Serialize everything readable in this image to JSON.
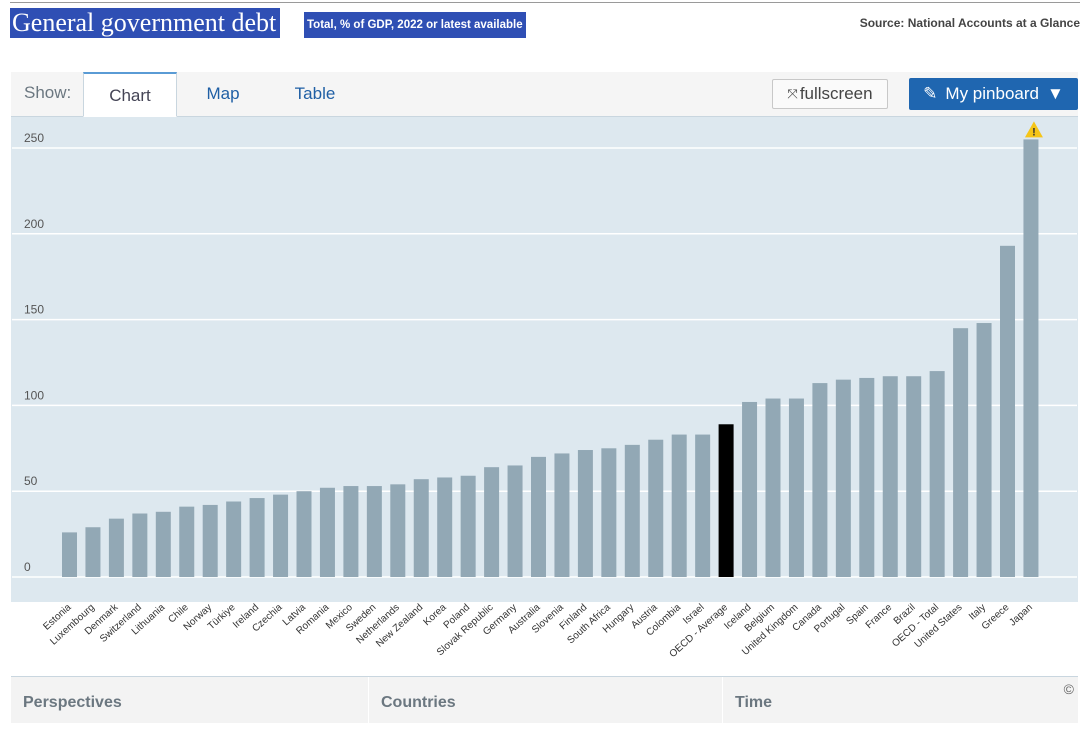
{
  "header": {
    "title": "General government debt",
    "subtitle": "Total, % of GDP, 2022 or latest available",
    "source": "Source: National Accounts at a Glance"
  },
  "toolbar": {
    "show_label": "Show:",
    "tabs": [
      {
        "label": "Chart",
        "active": true
      },
      {
        "label": "Map",
        "active": false
      },
      {
        "label": "Table",
        "active": false
      }
    ],
    "fullscreen_label": "fullscreen",
    "fullscreen_icon": "expand-arrows-icon",
    "pinboard_label": "My pinboard",
    "pinboard_icon": "pin-icon"
  },
  "footer": {
    "items": [
      "Perspectives",
      "Countries",
      "Time"
    ],
    "copyright": "©"
  },
  "colors": {
    "bar": "#92a8b5",
    "highlight_bar": "#000000",
    "plot_background": "#dde8ef",
    "warning": "#f5c518"
  },
  "chart_data": {
    "type": "bar",
    "ylim": [
      0,
      260
    ],
    "yticks": [
      0,
      50,
      100,
      150,
      200,
      250
    ],
    "grid": true,
    "highlight": "OECD - Average",
    "warning_on": "Japan",
    "categories": [
      "Estonia",
      "Luxembourg",
      "Denmark",
      "Switzerland",
      "Lithuania",
      "Chile",
      "Norway",
      "Türkiye",
      "Ireland",
      "Czechia",
      "Latvia",
      "Romania",
      "Mexico",
      "Sweden",
      "Netherlands",
      "New Zealand",
      "Korea",
      "Poland",
      "Slovak Republic",
      "Germany",
      "Australia",
      "Slovenia",
      "Finland",
      "South Africa",
      "Hungary",
      "Austria",
      "Colombia",
      "Israel",
      "OECD - Average",
      "Iceland",
      "Belgium",
      "United Kingdom",
      "Canada",
      "Portugal",
      "Spain",
      "France",
      "Brazil",
      "OECD - Total",
      "United States",
      "Italy",
      "Greece",
      "Japan"
    ],
    "values": [
      26,
      29,
      34,
      37,
      38,
      41,
      42,
      44,
      46,
      48,
      50,
      52,
      53,
      53,
      54,
      57,
      58,
      59,
      64,
      65,
      70,
      72,
      74,
      75,
      77,
      80,
      83,
      83,
      89,
      102,
      104,
      104,
      113,
      115,
      116,
      117,
      117,
      120,
      145,
      148,
      193,
      255
    ]
  }
}
